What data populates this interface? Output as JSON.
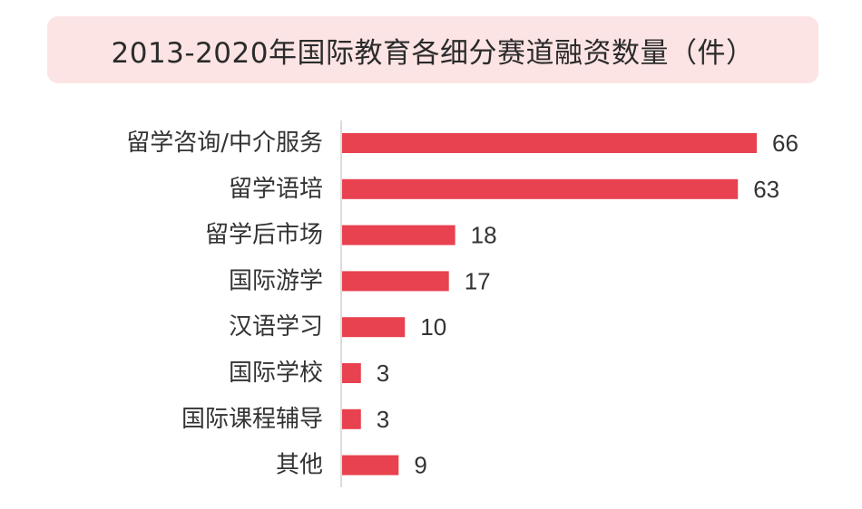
{
  "chart_data": {
    "type": "bar",
    "orientation": "horizontal",
    "title": "2013-2020年国际教育各细分赛道融资数量（件）",
    "categories": [
      "留学咨询/中介服务",
      "留学语培",
      "留学后市场",
      "国际游学",
      "汉语学习",
      "国际学校",
      "国际课程辅导",
      "其他"
    ],
    "values": [
      66,
      63,
      18,
      17,
      10,
      3,
      3,
      9
    ],
    "xlim": [
      0,
      66
    ],
    "grid": false,
    "legend": "none",
    "bar_color": "#e8414f",
    "title_background": "#fde4e4"
  }
}
